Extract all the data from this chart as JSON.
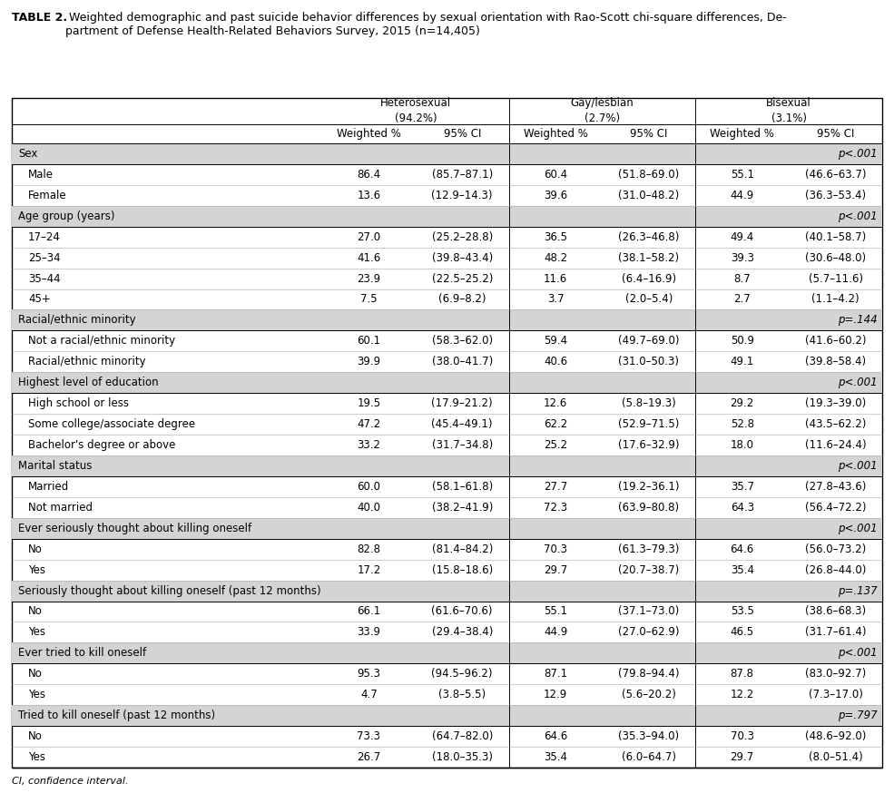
{
  "title_bold": "TABLE 2.",
  "title_rest": " Weighted demographic and past suicide behavior differences by sexual orientation with Rao-Scott chi-square differences, De-\npartment of Defense Health-Related Behaviors Survey, 2015 (n=14,405)",
  "col_headers": [
    [
      "Heterosexual",
      "(94.2%)"
    ],
    [
      "Gay/lesbian",
      "(2.7%)"
    ],
    [
      "Bisexual",
      "(3.1%)"
    ]
  ],
  "sub_headers": [
    "Weighted %",
    "95% CI",
    "Weighted %",
    "95% CI",
    "Weighted %",
    "95% CI"
  ],
  "rows": [
    {
      "type": "section",
      "label": "Sex",
      "pval": "p<.001"
    },
    {
      "type": "data",
      "label": "Male",
      "values": [
        "86.4",
        "(85.7–87.1)",
        "60.4",
        "(51.8–69.0)",
        "55.1",
        "(46.6–63.7)"
      ]
    },
    {
      "type": "data",
      "label": "Female",
      "values": [
        "13.6",
        "(12.9–14.3)",
        "39.6",
        "(31.0–48.2)",
        "44.9",
        "(36.3–53.4)"
      ]
    },
    {
      "type": "section",
      "label": "Age group (years)",
      "pval": "p<.001"
    },
    {
      "type": "data",
      "label": "17–24",
      "values": [
        "27.0",
        "(25.2–28.8)",
        "36.5",
        "(26.3–46.8)",
        "49.4",
        "(40.1–58.7)"
      ]
    },
    {
      "type": "data",
      "label": "25–34",
      "values": [
        "41.6",
        "(39.8–43.4)",
        "48.2",
        "(38.1–58.2)",
        "39.3",
        "(30.6–48.0)"
      ]
    },
    {
      "type": "data",
      "label": "35–44",
      "values": [
        "23.9",
        "(22.5–25.2)",
        "11.6",
        "(6.4–16.9)",
        "8.7",
        "(5.7–11.6)"
      ]
    },
    {
      "type": "data",
      "label": "45+",
      "values": [
        "7.5",
        "(6.9–8.2)",
        "3.7",
        "(2.0–5.4)",
        "2.7",
        "(1.1–4.2)"
      ]
    },
    {
      "type": "section",
      "label": "Racial/ethnic minority",
      "pval": "p=.144"
    },
    {
      "type": "data",
      "label": "Not a racial/ethnic minority",
      "values": [
        "60.1",
        "(58.3–62.0)",
        "59.4",
        "(49.7–69.0)",
        "50.9",
        "(41.6–60.2)"
      ]
    },
    {
      "type": "data",
      "label": "Racial/ethnic minority",
      "values": [
        "39.9",
        "(38.0–41.7)",
        "40.6",
        "(31.0–50.3)",
        "49.1",
        "(39.8–58.4)"
      ]
    },
    {
      "type": "section",
      "label": "Highest level of education",
      "pval": "p<.001"
    },
    {
      "type": "data",
      "label": "High school or less",
      "values": [
        "19.5",
        "(17.9–21.2)",
        "12.6",
        "(5.8–19.3)",
        "29.2",
        "(19.3–39.0)"
      ]
    },
    {
      "type": "data",
      "label": "Some college/associate degree",
      "values": [
        "47.2",
        "(45.4–49.1)",
        "62.2",
        "(52.9–71.5)",
        "52.8",
        "(43.5–62.2)"
      ]
    },
    {
      "type": "data",
      "label": "Bachelor's degree or above",
      "values": [
        "33.2",
        "(31.7–34.8)",
        "25.2",
        "(17.6–32.9)",
        "18.0",
        "(11.6–24.4)"
      ]
    },
    {
      "type": "section",
      "label": "Marital status",
      "pval": "p<.001"
    },
    {
      "type": "data",
      "label": "Married",
      "values": [
        "60.0",
        "(58.1–61.8)",
        "27.7",
        "(19.2–36.1)",
        "35.7",
        "(27.8–43.6)"
      ]
    },
    {
      "type": "data",
      "label": "Not married",
      "values": [
        "40.0",
        "(38.2–41.9)",
        "72.3",
        "(63.9–80.8)",
        "64.3",
        "(56.4–72.2)"
      ]
    },
    {
      "type": "section",
      "label": "Ever seriously thought about killing oneself",
      "pval": "p<.001"
    },
    {
      "type": "data",
      "label": "No",
      "values": [
        "82.8",
        "(81.4–84.2)",
        "70.3",
        "(61.3–79.3)",
        "64.6",
        "(56.0–73.2)"
      ]
    },
    {
      "type": "data",
      "label": "Yes",
      "values": [
        "17.2",
        "(15.8–18.6)",
        "29.7",
        "(20.7–38.7)",
        "35.4",
        "(26.8–44.0)"
      ]
    },
    {
      "type": "section",
      "label": "Seriously thought about killing oneself (past 12 months)",
      "pval": "p=.137"
    },
    {
      "type": "data",
      "label": "No",
      "values": [
        "66.1",
        "(61.6–70.6)",
        "55.1",
        "(37.1–73.0)",
        "53.5",
        "(38.6–68.3)"
      ]
    },
    {
      "type": "data",
      "label": "Yes",
      "values": [
        "33.9",
        "(29.4–38.4)",
        "44.9",
        "(27.0–62.9)",
        "46.5",
        "(31.7–61.4)"
      ]
    },
    {
      "type": "section",
      "label": "Ever tried to kill oneself",
      "pval": "p<.001"
    },
    {
      "type": "data",
      "label": "No",
      "values": [
        "95.3",
        "(94.5–96.2)",
        "87.1",
        "(79.8–94.4)",
        "87.8",
        "(83.0–92.7)"
      ]
    },
    {
      "type": "data",
      "label": "Yes",
      "values": [
        "4.7",
        "(3.8–5.5)",
        "12.9",
        "(5.6–20.2)",
        "12.2",
        "(7.3–17.0)"
      ]
    },
    {
      "type": "section",
      "label": "Tried to kill oneself (past 12 months)",
      "pval": "p=.797"
    },
    {
      "type": "data",
      "label": "No",
      "values": [
        "73.3",
        "(64.7–82.0)",
        "64.6",
        "(35.3–94.0)",
        "70.3",
        "(48.6–92.0)"
      ]
    },
    {
      "type": "data",
      "label": "Yes",
      "values": [
        "26.7",
        "(18.0–35.3)",
        "35.4",
        "(6.0–64.7)",
        "29.7",
        "(8.0–51.4)"
      ]
    }
  ],
  "footnote": "CI, confidence interval.",
  "bg_section": "#d4d4d4",
  "font_size": 8.5,
  "title_font_size": 9.0
}
